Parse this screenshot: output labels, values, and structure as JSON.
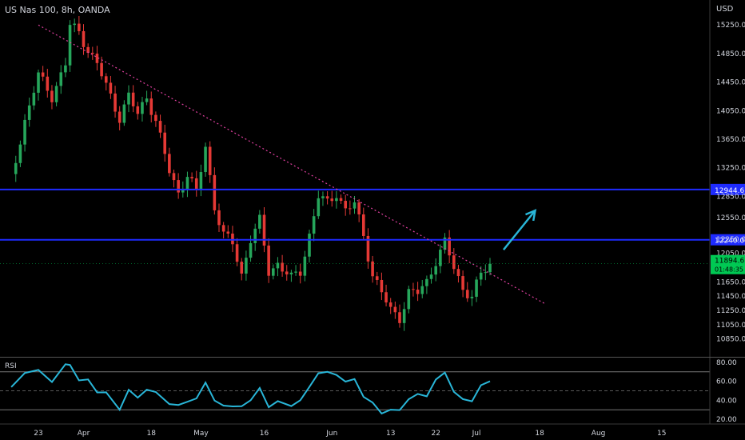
{
  "header": {
    "title": "US Nas 100, 8h, OANDA",
    "currency": "USD"
  },
  "price_tag": {
    "price": "11894.6",
    "change": "01:48:35"
  },
  "colors": {
    "up": "#26a65b",
    "down": "#e53935",
    "hline": "#1e2bff",
    "trend": "#e040a0",
    "arrow": "#29b6d8",
    "rsi": "#29b6d8",
    "price_tag": "#00c853",
    "text": "#d1d4dc"
  },
  "icons": {
    "arrow": "up-right-arrow-icon"
  },
  "chart_data": [
    {
      "type": "candlestick",
      "title": "US Nas 100, 8h, OANDA",
      "ylim": [
        10600,
        15600
      ],
      "y_ticks": [
        10850,
        11050,
        11250,
        11450,
        11650,
        11850,
        12050,
        12250,
        12550,
        12850,
        13250,
        13650,
        14050,
        14450,
        14850,
        15250
      ],
      "y_tick_labels": [
        "10850.0",
        "11050.0",
        "11250.0",
        "11450.0",
        "11650.0",
        "11850.0",
        "12050.0",
        "12250.0",
        "12550.0",
        "12850.0",
        "13250.0",
        "13650.0",
        "14050.0",
        "14450.0",
        "14850.0",
        "15250.0"
      ],
      "x_tick_labels": [
        "23",
        "Apr",
        "18",
        "May",
        "16",
        "Jun",
        "13",
        "22",
        "Jul",
        "18",
        "Aug",
        "15"
      ],
      "x_tick_index": [
        0,
        10,
        25,
        36,
        50,
        65,
        78,
        88,
        97,
        111,
        124,
        138
      ],
      "close_path": [
        {
          "i": -6,
          "c": 13100
        },
        {
          "i": -3,
          "c": 13900
        },
        {
          "i": 0,
          "c": 14550
        },
        {
          "i": 3,
          "c": 14250
        },
        {
          "i": 6,
          "c": 14700
        },
        {
          "i": 7,
          "c": 15250
        },
        {
          "i": 9,
          "c": 15150
        },
        {
          "i": 11,
          "c": 14900
        },
        {
          "i": 13,
          "c": 14700
        },
        {
          "i": 15,
          "c": 14400
        },
        {
          "i": 18,
          "c": 13950
        },
        {
          "i": 20,
          "c": 14250
        },
        {
          "i": 22,
          "c": 14000
        },
        {
          "i": 24,
          "c": 14250
        },
        {
          "i": 26,
          "c": 13900
        },
        {
          "i": 29,
          "c": 13200
        },
        {
          "i": 31,
          "c": 12900
        },
        {
          "i": 33,
          "c": 13150
        },
        {
          "i": 35,
          "c": 12900
        },
        {
          "i": 37,
          "c": 13550
        },
        {
          "i": 39,
          "c": 12700
        },
        {
          "i": 41,
          "c": 12300
        },
        {
          "i": 43,
          "c": 12200
        },
        {
          "i": 45,
          "c": 11750
        },
        {
          "i": 47,
          "c": 12250
        },
        {
          "i": 49,
          "c": 12500
        },
        {
          "i": 51,
          "c": 11800
        },
        {
          "i": 53,
          "c": 11900
        },
        {
          "i": 56,
          "c": 11700
        },
        {
          "i": 58,
          "c": 11800
        },
        {
          "i": 60,
          "c": 12300
        },
        {
          "i": 62,
          "c": 12850
        },
        {
          "i": 64,
          "c": 12750
        },
        {
          "i": 66,
          "c": 12900
        },
        {
          "i": 68,
          "c": 12650
        },
        {
          "i": 70,
          "c": 12750
        },
        {
          "i": 72,
          "c": 12300
        },
        {
          "i": 74,
          "c": 11750
        },
        {
          "i": 76,
          "c": 11500
        },
        {
          "i": 78,
          "c": 11250
        },
        {
          "i": 80,
          "c": 11150
        },
        {
          "i": 82,
          "c": 11500
        },
        {
          "i": 84,
          "c": 11500
        },
        {
          "i": 86,
          "c": 11650
        },
        {
          "i": 88,
          "c": 11950
        },
        {
          "i": 90,
          "c": 12200
        },
        {
          "i": 92,
          "c": 11850
        },
        {
          "i": 94,
          "c": 11550
        },
        {
          "i": 96,
          "c": 11450
        },
        {
          "i": 98,
          "c": 11750
        },
        {
          "i": 100,
          "c": 11900
        }
      ],
      "horizontal_levels": [
        {
          "value": 12944.6,
          "label": "12944.6"
        },
        {
          "value": 12240.0,
          "label": "12240.0"
        }
      ],
      "trendline": {
        "start": {
          "i": 0,
          "v": 15250
        },
        "end": {
          "i": 112,
          "v": 11350
        }
      },
      "projection": {
        "start": {
          "i": 103,
          "v": 12100
        },
        "end": {
          "i": 110,
          "v": 12650
        }
      }
    },
    {
      "type": "line",
      "title": "RSI",
      "ylim": [
        15,
        85
      ],
      "y_ticks": [
        20,
        40,
        60,
        80
      ],
      "y_tick_labels": [
        "20.00",
        "40.00",
        "60.00",
        "80.00"
      ],
      "bands": [
        70,
        50,
        30
      ],
      "series": [
        {
          "x": [
            -6,
            -3,
            0,
            3,
            6,
            7,
            9,
            11,
            13,
            15,
            18,
            20,
            22,
            24,
            26,
            29,
            31,
            33,
            35,
            37,
            39,
            41,
            43,
            45,
            47,
            49,
            51,
            53,
            56,
            58,
            60,
            62,
            64,
            66,
            68,
            70,
            72,
            74,
            76,
            78,
            80,
            82,
            84,
            86,
            88,
            90,
            92,
            94,
            96,
            98,
            100
          ],
          "values": [
            58,
            66,
            72,
            62,
            74,
            76,
            64,
            58,
            52,
            46,
            34,
            48,
            44,
            52,
            46,
            36,
            33,
            42,
            38,
            62,
            38,
            34,
            36,
            30,
            44,
            50,
            34,
            40,
            36,
            40,
            52,
            72,
            66,
            70,
            58,
            62,
            46,
            34,
            30,
            27,
            31,
            42,
            44,
            48,
            58,
            72,
            48,
            40,
            42,
            52,
            60
          ]
        }
      ]
    }
  ]
}
